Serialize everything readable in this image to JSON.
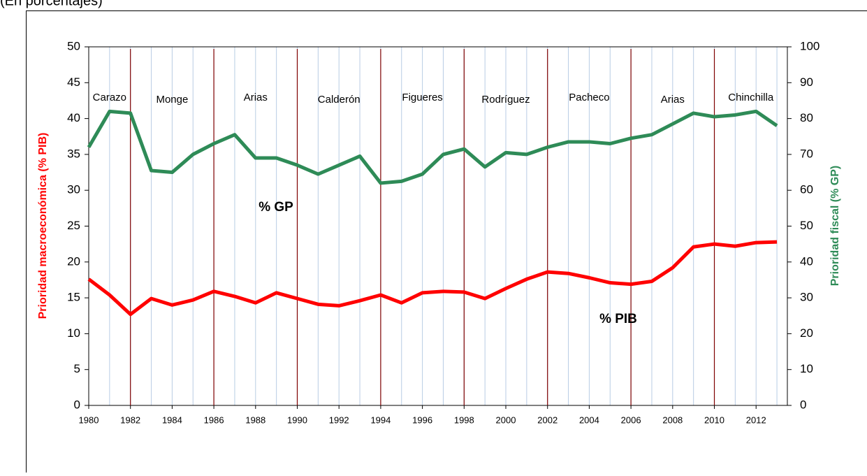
{
  "chart_data": {
    "type": "line",
    "subtitle": "(En porcentajes)",
    "y_label": "Prioridad macroeconómica (% PIB)",
    "y2_label": "Prioridad fiscal (% GP)",
    "x": [
      1980,
      1981,
      1982,
      1983,
      1984,
      1985,
      1986,
      1987,
      1988,
      1989,
      1990,
      1991,
      1992,
      1993,
      1994,
      1995,
      1996,
      1997,
      1998,
      1999,
      2000,
      2001,
      2002,
      2003,
      2004,
      2005,
      2006,
      2007,
      2008,
      2009,
      2010,
      2011,
      2012,
      2013
    ],
    "series": [
      {
        "name": "% PIB",
        "color": "#ff0000",
        "values": [
          17.6,
          15.4,
          12.7,
          14.9,
          14.0,
          14.7,
          15.9,
          15.2,
          14.3,
          15.7,
          14.9,
          14.1,
          13.9,
          14.6,
          15.4,
          14.3,
          15.7,
          15.9,
          15.8,
          14.9,
          16.3,
          17.6,
          18.6,
          18.4,
          17.8,
          17.1,
          16.9,
          17.3,
          19.2,
          22.1,
          22.5,
          22.2,
          22.7,
          22.8
        ]
      },
      {
        "name": "% GP",
        "color": "#2e8b57",
        "axis": "y2",
        "values": [
          72,
          82,
          81.5,
          65.5,
          65,
          70,
          73,
          75.5,
          69,
          69,
          67,
          64.5,
          67,
          69.5,
          62,
          62.5,
          64.5,
          70,
          71.5,
          66.5,
          70.5,
          70,
          72,
          73.5,
          73.5,
          73,
          74.5,
          75.5,
          78.5,
          81.5,
          80.5,
          81,
          82,
          78
        ]
      }
    ],
    "xlim": [
      1980,
      2013.5
    ],
    "xticks": [
      1980,
      1982,
      1984,
      1986,
      1988,
      1990,
      1992,
      1994,
      1996,
      1998,
      2000,
      2002,
      2004,
      2006,
      2008,
      2010,
      2012
    ],
    "xminor_ticks": [
      1980,
      1981,
      1982,
      1983,
      1984,
      1985,
      1986,
      1987,
      1988,
      1989,
      1990,
      1991,
      1992,
      1993,
      1994,
      1995,
      1996,
      1997,
      1998,
      1999,
      2000,
      2001,
      2002,
      2003,
      2004,
      2005,
      2006,
      2007,
      2008,
      2009,
      2010,
      2011,
      2012,
      2013
    ],
    "ylim": [
      0,
      50
    ],
    "yticks": [
      0,
      5,
      10,
      15,
      20,
      25,
      30,
      35,
      40,
      45,
      50
    ],
    "y2lim": [
      0,
      100
    ],
    "y2ticks": [
      0,
      10,
      20,
      30,
      40,
      50,
      60,
      70,
      80,
      90,
      100
    ],
    "grid": true,
    "period_boundaries": [
      1982,
      1986,
      1990,
      1994,
      1998,
      2002,
      2006,
      2010
    ],
    "boundary_color": "#800000",
    "period_labels": [
      "Carazo",
      "Monge",
      "Arias",
      "Calderón",
      "Figueres",
      "Rodríguez",
      "Pacheco",
      "Arias",
      "Chinchilla"
    ]
  }
}
